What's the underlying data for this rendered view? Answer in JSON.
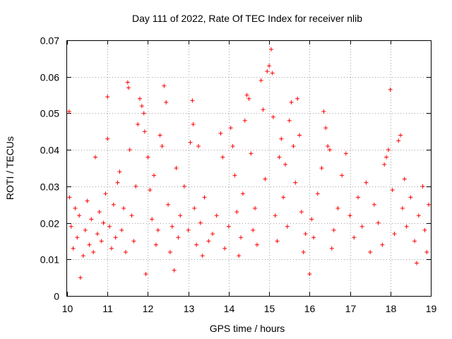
{
  "chart_data": {
    "type": "scatter",
    "title": "Day 111 of 2022, Rate Of TEC Index for receiver nlib",
    "xlabel": "GPS time / hours",
    "ylabel": "ROTI / TECUs",
    "xlim": [
      10,
      19
    ],
    "ylim": [
      0,
      0.07
    ],
    "xticks": [
      "10",
      "11",
      "12",
      "13",
      "14",
      "15",
      "16",
      "17",
      "18",
      "19"
    ],
    "yticks": [
      "0",
      "0.01",
      "0.02",
      "0.03",
      "0.04",
      "0.05",
      "0.06",
      "0.07"
    ],
    "grid": true,
    "marker": "+",
    "color": "#ff0000",
    "series": [
      {
        "name": "ROTI",
        "points": [
          [
            10.05,
            0.0505
          ],
          [
            10.06,
            0.027
          ],
          [
            10.1,
            0.019
          ],
          [
            10.15,
            0.013
          ],
          [
            10.2,
            0.024
          ],
          [
            10.25,
            0.016
          ],
          [
            10.3,
            0.022
          ],
          [
            10.33,
            0.005
          ],
          [
            10.4,
            0.011
          ],
          [
            10.45,
            0.018
          ],
          [
            10.5,
            0.026
          ],
          [
            10.55,
            0.014
          ],
          [
            10.6,
            0.021
          ],
          [
            10.65,
            0.012
          ],
          [
            10.7,
            0.038
          ],
          [
            10.75,
            0.017
          ],
          [
            10.8,
            0.023
          ],
          [
            10.85,
            0.015
          ],
          [
            10.9,
            0.02
          ],
          [
            10.95,
            0.028
          ],
          [
            11.0,
            0.0545
          ],
          [
            11.0,
            0.043
          ],
          [
            11.05,
            0.019
          ],
          [
            11.1,
            0.013
          ],
          [
            11.15,
            0.025
          ],
          [
            11.2,
            0.016
          ],
          [
            11.25,
            0.031
          ],
          [
            11.3,
            0.034
          ],
          [
            11.35,
            0.018
          ],
          [
            11.4,
            0.024
          ],
          [
            11.45,
            0.012
          ],
          [
            11.5,
            0.0585
          ],
          [
            11.52,
            0.057
          ],
          [
            11.55,
            0.04
          ],
          [
            11.6,
            0.022
          ],
          [
            11.65,
            0.015
          ],
          [
            11.7,
            0.03
          ],
          [
            11.75,
            0.047
          ],
          [
            11.8,
            0.054
          ],
          [
            11.85,
            0.052
          ],
          [
            11.9,
            0.05
          ],
          [
            11.92,
            0.045
          ],
          [
            11.95,
            0.006
          ],
          [
            12.0,
            0.038
          ],
          [
            12.05,
            0.029
          ],
          [
            12.1,
            0.021
          ],
          [
            12.15,
            0.033
          ],
          [
            12.2,
            0.014
          ],
          [
            12.25,
            0.018
          ],
          [
            12.3,
            0.044
          ],
          [
            12.35,
            0.041
          ],
          [
            12.4,
            0.0575
          ],
          [
            12.45,
            0.053
          ],
          [
            12.5,
            0.025
          ],
          [
            12.55,
            0.012
          ],
          [
            12.6,
            0.019
          ],
          [
            12.65,
            0.007
          ],
          [
            12.7,
            0.035
          ],
          [
            12.75,
            0.016
          ],
          [
            12.8,
            0.022
          ],
          [
            12.9,
            0.03
          ],
          [
            13.0,
            0.018
          ],
          [
            13.05,
            0.042
          ],
          [
            13.1,
            0.0535
          ],
          [
            13.12,
            0.047
          ],
          [
            13.15,
            0.024
          ],
          [
            13.2,
            0.014
          ],
          [
            13.25,
            0.041
          ],
          [
            13.3,
            0.02
          ],
          [
            13.35,
            0.011
          ],
          [
            13.4,
            0.027
          ],
          [
            13.5,
            0.015
          ],
          [
            13.6,
            0.017
          ],
          [
            13.7,
            0.022
          ],
          [
            13.8,
            0.0445
          ],
          [
            13.85,
            0.038
          ],
          [
            13.9,
            0.013
          ],
          [
            14.0,
            0.019
          ],
          [
            14.05,
            0.046
          ],
          [
            14.1,
            0.041
          ],
          [
            14.15,
            0.033
          ],
          [
            14.2,
            0.023
          ],
          [
            14.25,
            0.011
          ],
          [
            14.3,
            0.016
          ],
          [
            14.35,
            0.028
          ],
          [
            14.4,
            0.048
          ],
          [
            14.45,
            0.055
          ],
          [
            14.5,
            0.054
          ],
          [
            14.55,
            0.039
          ],
          [
            14.6,
            0.018
          ],
          [
            14.65,
            0.024
          ],
          [
            14.7,
            0.014
          ],
          [
            14.8,
            0.059
          ],
          [
            14.85,
            0.051
          ],
          [
            14.9,
            0.032
          ],
          [
            14.95,
            0.0615
          ],
          [
            15.0,
            0.063
          ],
          [
            15.05,
            0.0675
          ],
          [
            15.08,
            0.061
          ],
          [
            15.1,
            0.049
          ],
          [
            15.15,
            0.022
          ],
          [
            15.2,
            0.015
          ],
          [
            15.25,
            0.038
          ],
          [
            15.3,
            0.043
          ],
          [
            15.35,
            0.027
          ],
          [
            15.4,
            0.036
          ],
          [
            15.45,
            0.019
          ],
          [
            15.5,
            0.048
          ],
          [
            15.55,
            0.053
          ],
          [
            15.6,
            0.041
          ],
          [
            15.65,
            0.031
          ],
          [
            15.7,
            0.054
          ],
          [
            15.75,
            0.044
          ],
          [
            15.8,
            0.023
          ],
          [
            15.85,
            0.012
          ],
          [
            15.9,
            0.017
          ],
          [
            16.0,
            0.006
          ],
          [
            16.05,
            0.021
          ],
          [
            16.1,
            0.016
          ],
          [
            16.2,
            0.028
          ],
          [
            16.3,
            0.035
          ],
          [
            16.35,
            0.0505
          ],
          [
            16.4,
            0.046
          ],
          [
            16.45,
            0.041
          ],
          [
            16.5,
            0.04
          ],
          [
            16.55,
            0.013
          ],
          [
            16.6,
            0.018
          ],
          [
            16.7,
            0.024
          ],
          [
            16.8,
            0.033
          ],
          [
            16.9,
            0.039
          ],
          [
            17.0,
            0.022
          ],
          [
            17.1,
            0.016
          ],
          [
            17.2,
            0.027
          ],
          [
            17.3,
            0.019
          ],
          [
            17.4,
            0.031
          ],
          [
            17.5,
            0.012
          ],
          [
            17.6,
            0.025
          ],
          [
            17.7,
            0.02
          ],
          [
            17.8,
            0.014
          ],
          [
            17.85,
            0.036
          ],
          [
            17.9,
            0.038
          ],
          [
            17.95,
            0.04
          ],
          [
            18.0,
            0.0565
          ],
          [
            18.05,
            0.029
          ],
          [
            18.1,
            0.017
          ],
          [
            18.2,
            0.0425
          ],
          [
            18.25,
            0.044
          ],
          [
            18.3,
            0.024
          ],
          [
            18.35,
            0.032
          ],
          [
            18.4,
            0.019
          ],
          [
            18.5,
            0.027
          ],
          [
            18.6,
            0.015
          ],
          [
            18.65,
            0.009
          ],
          [
            18.7,
            0.022
          ],
          [
            18.8,
            0.03
          ],
          [
            18.85,
            0.018
          ],
          [
            18.9,
            0.012
          ],
          [
            18.95,
            0.025
          ]
        ]
      }
    ]
  }
}
